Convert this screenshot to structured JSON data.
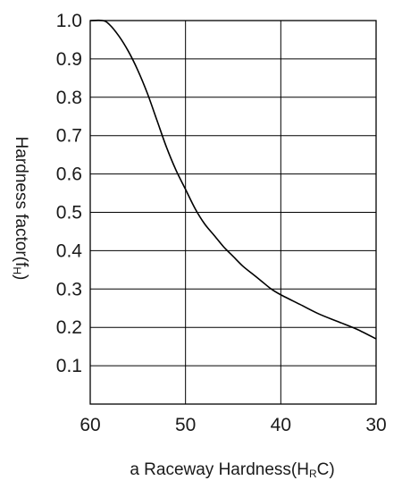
{
  "chart_data": {
    "type": "line",
    "title": "",
    "xlabel": "a Raceway Hardness(HRC)",
    "xlabel_parts": {
      "prefix": "a Raceway Hardness(H",
      "sub": "R",
      "suffix": "C)"
    },
    "ylabel": "Hardness factor(fH)",
    "ylabel_parts": {
      "prefix": "Hardness factor(f",
      "sub": "H",
      "suffix": ")"
    },
    "xlim": [
      60,
      30
    ],
    "ylim": [
      0,
      1.0
    ],
    "x_ticks": [
      "60",
      "50",
      "40",
      "30"
    ],
    "x_tick_values": [
      60,
      50,
      40,
      30
    ],
    "y_ticks": [
      "0.1",
      "0.2",
      "0.3",
      "0.4",
      "0.5",
      "0.6",
      "0.7",
      "0.8",
      "0.9",
      "1.0"
    ],
    "y_tick_values": [
      0.1,
      0.2,
      0.3,
      0.4,
      0.5,
      0.6,
      0.7,
      0.8,
      0.9,
      1.0
    ],
    "grid": true,
    "line_color": "#000000",
    "grid_color": "#000000",
    "series": [
      {
        "x": [
          60,
          58.7,
          58,
          57,
          56,
          55,
          54,
          53,
          52,
          51,
          50,
          49,
          48,
          47,
          46,
          45,
          44,
          43,
          42,
          41,
          40,
          38,
          36,
          34,
          32,
          30
        ],
        "y": [
          1.0,
          1.0,
          0.99,
          0.96,
          0.92,
          0.87,
          0.81,
          0.74,
          0.67,
          0.61,
          0.56,
          0.51,
          0.47,
          0.44,
          0.41,
          0.385,
          0.36,
          0.34,
          0.32,
          0.3,
          0.285,
          0.26,
          0.235,
          0.215,
          0.195,
          0.17
        ]
      }
    ]
  }
}
